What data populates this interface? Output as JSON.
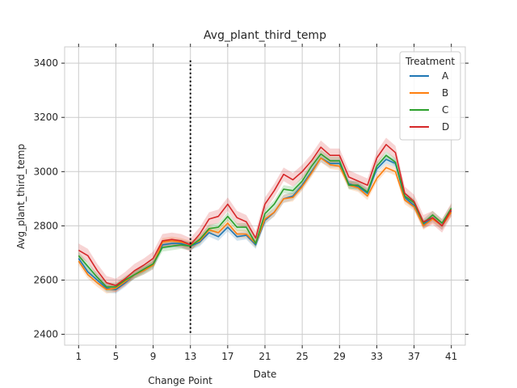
{
  "chart_data": {
    "type": "line",
    "title": "Avg_plant_third_temp",
    "xlabel": "Date",
    "ylabel": "Avg_plant_third_temp",
    "xlim": [
      -0.5,
      42.5
    ],
    "ylim": [
      2360,
      3460
    ],
    "xticks": [
      1,
      5,
      9,
      13,
      17,
      21,
      25,
      29,
      33,
      37,
      41
    ],
    "yticks": [
      2400,
      2600,
      2800,
      3000,
      3200,
      3400
    ],
    "grid": true,
    "legend": {
      "title": "Treatment",
      "placement": "upper right"
    },
    "annotation": {
      "label": "Change Point",
      "x": 13,
      "style": "dotted vertical line"
    },
    "x": [
      1,
      2,
      3,
      4,
      5,
      6,
      7,
      8,
      9,
      10,
      11,
      12,
      13,
      14,
      15,
      16,
      17,
      18,
      19,
      20,
      21,
      22,
      23,
      24,
      25,
      26,
      27,
      28,
      29,
      30,
      31,
      32,
      33,
      34,
      35,
      36,
      37,
      38,
      39,
      40,
      41
    ],
    "series": [
      {
        "name": "A",
        "color": "#1f77b4",
        "values": [
          2680,
          2630,
          2600,
          2570,
          2565,
          2590,
          2620,
          2635,
          2655,
          2730,
          2735,
          2735,
          2725,
          2740,
          2775,
          2760,
          2795,
          2760,
          2765,
          2730,
          2820,
          2850,
          2900,
          2910,
          2950,
          3000,
          3050,
          3030,
          3030,
          2955,
          2945,
          2920,
          3010,
          3045,
          3030,
          2905,
          2875,
          2805,
          2830,
          2800,
          2855
        ],
        "band": 15
      },
      {
        "name": "B",
        "color": "#ff7f0e",
        "values": [
          2670,
          2620,
          2590,
          2565,
          2570,
          2595,
          2620,
          2635,
          2655,
          2740,
          2745,
          2740,
          2730,
          2745,
          2785,
          2775,
          2810,
          2770,
          2770,
          2735,
          2825,
          2850,
          2900,
          2905,
          2945,
          2995,
          3050,
          3025,
          3020,
          2950,
          2940,
          2910,
          2975,
          3015,
          3000,
          2895,
          2870,
          2800,
          2825,
          2800,
          2850
        ],
        "band": 15
      },
      {
        "name": "C",
        "color": "#2ca02c",
        "values": [
          2690,
          2650,
          2610,
          2575,
          2575,
          2600,
          2620,
          2640,
          2660,
          2720,
          2725,
          2730,
          2725,
          2750,
          2790,
          2795,
          2835,
          2795,
          2795,
          2735,
          2845,
          2880,
          2935,
          2930,
          2965,
          3020,
          3065,
          3040,
          3040,
          2950,
          2950,
          2925,
          3020,
          3060,
          3035,
          2910,
          2885,
          2810,
          2840,
          2810,
          2865
        ],
        "band": 15
      },
      {
        "name": "D",
        "color": "#d62728",
        "values": [
          2710,
          2690,
          2635,
          2590,
          2580,
          2605,
          2635,
          2655,
          2680,
          2745,
          2750,
          2745,
          2730,
          2770,
          2825,
          2835,
          2880,
          2830,
          2815,
          2755,
          2880,
          2930,
          2990,
          2970,
          3000,
          3040,
          3090,
          3060,
          3060,
          2980,
          2965,
          2950,
          3050,
          3100,
          3070,
          2920,
          2890,
          2815,
          2830,
          2800,
          2860
        ],
        "band": 25
      }
    ]
  }
}
